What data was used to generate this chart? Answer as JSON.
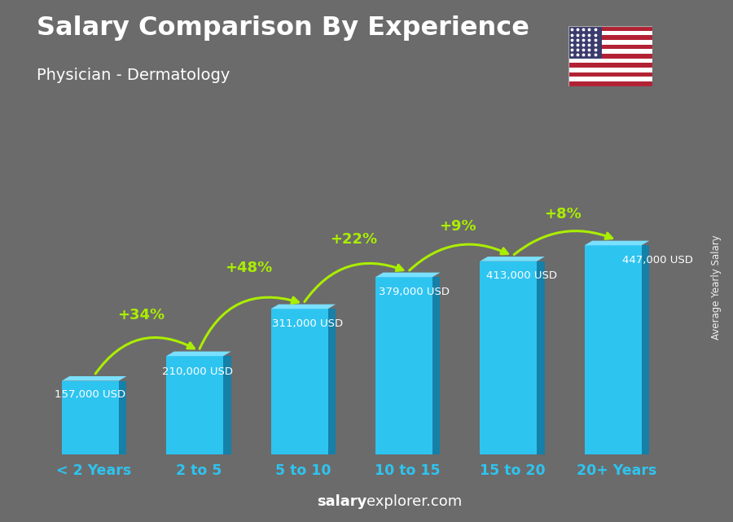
{
  "title": "Salary Comparison By Experience",
  "subtitle": "Physician - Dermatology",
  "categories": [
    "< 2 Years",
    "2 to 5",
    "5 to 10",
    "10 to 15",
    "15 to 20",
    "20+ Years"
  ],
  "values": [
    157000,
    210000,
    311000,
    379000,
    413000,
    447000
  ],
  "labels": [
    "157,000 USD",
    "210,000 USD",
    "311,000 USD",
    "379,000 USD",
    "413,000 USD",
    "447,000 USD"
  ],
  "pct_changes": [
    "+34%",
    "+48%",
    "+22%",
    "+9%",
    "+8%"
  ],
  "bar_color_main": "#2ec4f0",
  "bar_color_dark": "#1a9ec8",
  "bar_color_darker": "#1580a8",
  "bar_color_light": "#7ae0ff",
  "background_color": "#6b6b6b",
  "title_color": "#ffffff",
  "subtitle_color": "#ffffff",
  "label_color": "#ffffff",
  "pct_color": "#aaee00",
  "xlabel_color": "#2ec4f0",
  "watermark_bold": "salary",
  "watermark_normal": "explorer.com",
  "ylabel_text": "Average Yearly Salary",
  "figsize": [
    9.0,
    6.41
  ],
  "dpi": 100
}
